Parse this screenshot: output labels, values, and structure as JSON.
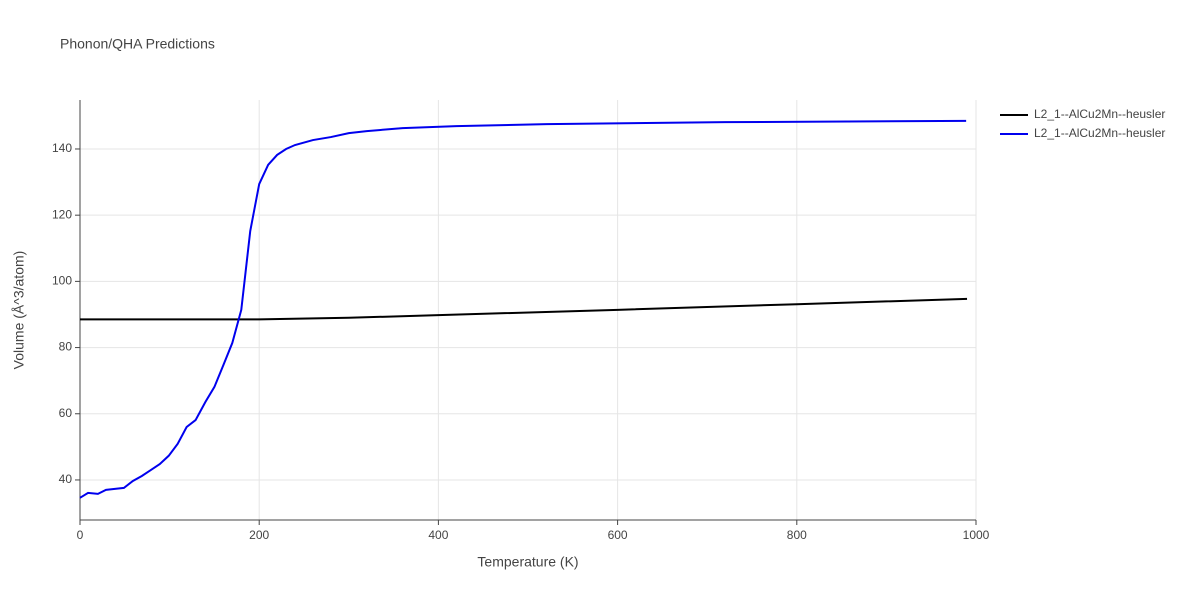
{
  "chart_data": {
    "type": "line",
    "title": "Phonon/QHA Predictions",
    "x_label": "Temperature (K)",
    "y_label": "Volume (Å^3/atom)",
    "xlim": [
      0,
      1000
    ],
    "xticks": [
      0,
      200,
      400,
      600,
      800,
      1000
    ],
    "ylim": [
      27.9,
      154.8
    ],
    "yticks": [
      40,
      60,
      80,
      100,
      120,
      140
    ],
    "grid": true,
    "series": [
      {
        "name": "L2_1--AlCu2Mn--heusler",
        "color": "#000000",
        "x": [
          0,
          200,
          300,
          400,
          600,
          800,
          990
        ],
        "values": [
          88.5,
          88.5,
          89.0,
          89.8,
          91.4,
          93.1,
          94.7
        ]
      },
      {
        "name": "L2_1--AlCu2Mn--heusler",
        "color": "#0000ee",
        "x": [
          0,
          9,
          20,
          29,
          39,
          49,
          59,
          69,
          79,
          89,
          99,
          109,
          119,
          129,
          140,
          150,
          160,
          170,
          180,
          190,
          200,
          210,
          220,
          230,
          240,
          260,
          280,
          300,
          320,
          360,
          420,
          521,
          720,
          989
        ],
        "values": [
          34.6,
          36.1,
          35.8,
          37.0,
          37.3,
          37.6,
          39.7,
          41.2,
          43.0,
          44.8,
          47.3,
          50.9,
          56.0,
          58.1,
          63.6,
          68.1,
          74.7,
          81.4,
          91.4,
          115.2,
          129.4,
          135.2,
          138.2,
          140.0,
          141.2,
          142.7,
          143.6,
          144.8,
          145.4,
          146.3,
          146.9,
          147.5,
          148.1,
          148.5
        ]
      }
    ]
  }
}
